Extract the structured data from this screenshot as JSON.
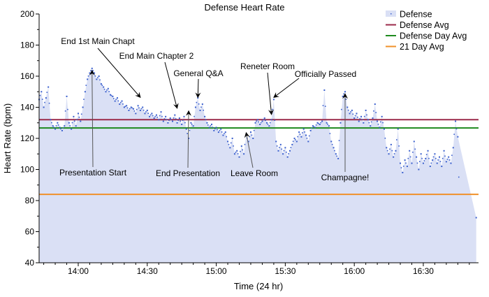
{
  "chart_data": {
    "type": "scatter",
    "title": "Defense Heart Rate",
    "xlabel": "Time (24 hr)",
    "ylabel": "Heart Rate (bpm)",
    "xlim": [
      "13:43",
      "16:54"
    ],
    "ylim": [
      40,
      200
    ],
    "x_ticks": [
      "14:00",
      "14:30",
      "15:00",
      "15:30",
      "16:00",
      "16:30"
    ],
    "y_ticks": [
      40,
      60,
      80,
      100,
      120,
      140,
      160,
      180,
      200
    ],
    "grid": false,
    "legend_position": "top-right",
    "legend": [
      {
        "name": "Defense",
        "color": "#3a5fcd",
        "fill": "#dae0f5"
      },
      {
        "name": "Defense Avg",
        "color": "#9b2a4a"
      },
      {
        "name": "Defense Day Avg",
        "color": "#1e8a1e"
      },
      {
        "name": "21 Day Avg",
        "color": "#f0902a"
      }
    ],
    "reference_lines": [
      {
        "name": "Defense Avg",
        "value": 132,
        "color": "#9b2a4a"
      },
      {
        "name": "Defense Day Avg",
        "value": 126.7,
        "color": "#1e8a1e"
      },
      {
        "name": "21 Day Avg",
        "value": 84,
        "color": "#f0902a"
      }
    ],
    "series": [
      {
        "name": "Defense",
        "x": [
          "13:43",
          "13:44",
          "13:45",
          "13:46",
          "13:47",
          "13:48",
          "13:49",
          "13:50",
          "13:51",
          "13:52",
          "13:53",
          "13:54",
          "13:55",
          "13:56",
          "13:57",
          "13:58",
          "13:59",
          "14:00",
          "14:01",
          "14:02",
          "14:03",
          "14:04",
          "14:05",
          "14:06",
          "14:07",
          "14:08",
          "14:09",
          "14:10",
          "14:11",
          "14:12",
          "14:13",
          "14:14",
          "14:15",
          "14:16",
          "14:17",
          "14:18",
          "14:19",
          "14:20",
          "14:21",
          "14:22",
          "14:23",
          "14:24",
          "14:25",
          "14:26",
          "14:27",
          "14:28",
          "14:29",
          "14:30",
          "14:31",
          "14:32",
          "14:33",
          "14:34",
          "14:35",
          "14:36",
          "14:37",
          "14:38",
          "14:39",
          "14:40",
          "14:41",
          "14:42",
          "14:43",
          "14:44",
          "14:45",
          "14:46",
          "14:47",
          "14:48",
          "14:49",
          "14:50",
          "14:51",
          "14:52",
          "14:53",
          "14:54",
          "14:55",
          "14:56",
          "14:57",
          "14:58",
          "14:59",
          "15:00",
          "15:01",
          "15:02",
          "15:03",
          "15:04",
          "15:05",
          "15:06",
          "15:07",
          "15:08",
          "15:09",
          "15:10",
          "15:11",
          "15:12",
          "15:13",
          "15:14",
          "15:15",
          "15:16",
          "15:17",
          "15:18",
          "15:19",
          "15:20",
          "15:21",
          "15:22",
          "15:23",
          "15:24",
          "15:25",
          "15:26",
          "15:27",
          "15:28",
          "15:29",
          "15:30",
          "15:31",
          "15:32",
          "15:33",
          "15:34",
          "15:35",
          "15:36",
          "15:37",
          "15:38",
          "15:39",
          "15:40",
          "15:41",
          "15:42",
          "15:43",
          "15:44",
          "15:45",
          "15:46",
          "15:47",
          "15:48",
          "15:49",
          "15:50",
          "15:51",
          "15:52",
          "15:53",
          "15:54",
          "15:55",
          "15:56",
          "15:57",
          "15:58",
          "15:59",
          "16:00",
          "16:01",
          "16:02",
          "16:03",
          "16:04",
          "16:05",
          "16:06",
          "16:07",
          "16:08",
          "16:09",
          "16:10",
          "16:11",
          "16:12",
          "16:13",
          "16:14",
          "16:15",
          "16:16",
          "16:17",
          "16:18",
          "16:19",
          "16:20",
          "16:21",
          "16:22",
          "16:23",
          "16:24",
          "16:25",
          "16:26",
          "16:27",
          "16:28",
          "16:29",
          "16:30",
          "16:31",
          "16:32",
          "16:33",
          "16:34",
          "16:35",
          "16:36",
          "16:37",
          "16:38",
          "16:39",
          "16:40",
          "16:41",
          "16:42",
          "16:43",
          "16:44",
          "16:45",
          "16:53"
        ],
        "y": [
          145,
          150,
          140,
          146,
          153,
          132,
          128,
          126,
          130,
          127,
          125,
          128,
          147,
          130,
          126,
          134,
          128,
          136,
          131,
          140,
          150,
          158,
          162,
          165,
          162,
          158,
          160,
          155,
          153,
          150,
          152,
          148,
          147,
          144,
          146,
          142,
          144,
          140,
          141,
          138,
          140,
          139,
          136,
          141,
          138,
          140,
          136,
          138,
          134,
          136,
          133,
          135,
          132,
          137,
          131,
          134,
          130,
          133,
          131,
          135,
          130,
          133,
          129,
          134,
          126,
          120,
          130,
          128,
          140,
          146,
          138,
          142,
          134,
          130,
          127,
          129,
          125,
          127,
          124,
          126,
          122,
          124,
          118,
          114,
          120,
          110,
          112,
          108,
          115,
          110,
          122,
          118,
          124,
          120,
          130,
          132,
          129,
          131,
          133,
          130,
          128,
          132,
          145,
          118,
          112,
          116,
          110,
          114,
          108,
          112,
          116,
          120,
          118,
          124,
          121,
          126,
          122,
          118,
          125,
          128,
          127,
          130,
          129,
          131,
          151,
          130,
          128,
          118,
          114,
          110,
          107,
          130,
          147,
          150,
          140,
          136,
          138,
          133,
          136,
          131,
          134,
          130,
          138,
          132,
          128,
          133,
          142,
          131,
          127,
          134,
          126,
          114,
          110,
          116,
          108,
          112,
          126,
          104,
          98,
          106,
          102,
          112,
          104,
          118,
          108,
          100,
          110,
          104,
          107,
          112,
          102,
          106,
          110,
          104,
          108,
          102,
          112,
          105,
          108,
          104,
          114,
          131,
          121,
          69
        ]
      }
    ],
    "annotations": [
      {
        "text": "End 1st Main Chapt",
        "x": "14:27",
        "y": 145
      },
      {
        "text": "End Main Chapter 2",
        "x": "14:43",
        "y": 138
      },
      {
        "text": "General Q&A",
        "x": "14:52",
        "y": 145
      },
      {
        "text": "Reneter Room",
        "x": "15:24",
        "y": 134
      },
      {
        "text": "Officially Passed",
        "x": "15:25",
        "y": 145
      },
      {
        "text": "Presentation Start",
        "x": "14:06",
        "y": 165
      },
      {
        "text": "End Presentation",
        "x": "14:48",
        "y": 139
      },
      {
        "text": "Leave Room",
        "x": "15:13",
        "y": 125
      },
      {
        "text": "Champagne!",
        "x": "15:56",
        "y": 150
      }
    ]
  }
}
